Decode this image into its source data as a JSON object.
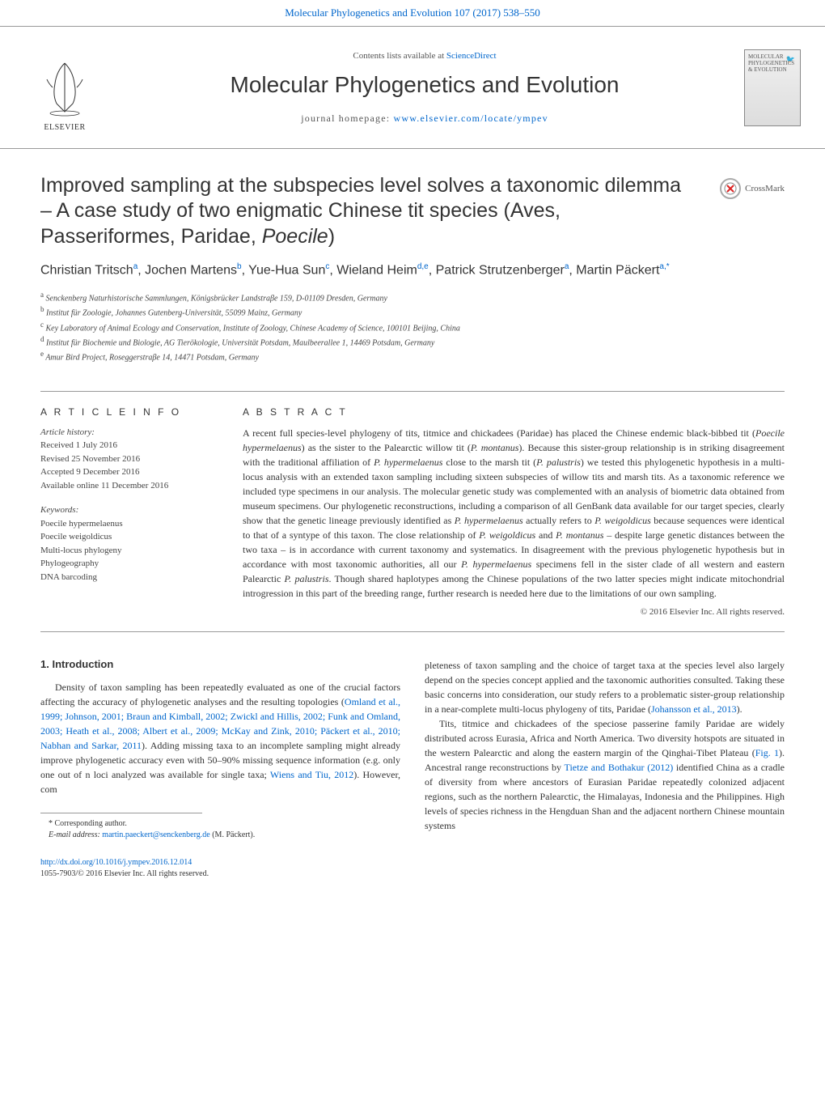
{
  "header": {
    "citation": "Molecular Phylogenetics and Evolution 107 (2017) 538–550",
    "contents_prefix": "Contents lists available at ",
    "contents_link": "ScienceDirect",
    "journal_title": "Molecular Phylogenetics and Evolution",
    "homepage_prefix": "journal homepage: ",
    "homepage_link": "www.elsevier.com/locate/ympev",
    "publisher_name": "ELSEVIER",
    "cover_label": "MOLECULAR PHYLOGENETICS & EVOLUTION"
  },
  "crossmark": {
    "label": "CrossMark"
  },
  "article": {
    "title_pre": "Improved sampling at the subspecies level solves a taxonomic dilemma – A case study of two enigmatic Chinese tit species (Aves, Passeriformes, Paridae, ",
    "title_italic": "Poecile",
    "title_post": ")",
    "authors_html": "Christian Tritsch<sup>a</sup>, Jochen Martens<sup>b</sup>, Yue-Hua Sun<sup>c</sup>, Wieland Heim<sup>d,e</sup>, Patrick Strutzenberger<sup>a</sup>, Martin Päckert<sup>a,*</sup>",
    "affiliations": [
      {
        "sup": "a",
        "text": "Senckenberg Naturhistorische Sammlungen, Königsbrücker Landstraβe 159, D-01109 Dresden, Germany"
      },
      {
        "sup": "b",
        "text": "Institut für Zoologie, Johannes Gutenberg-Universität, 55099 Mainz, Germany"
      },
      {
        "sup": "c",
        "text": "Key Laboratory of Animal Ecology and Conservation, Institute of Zoology, Chinese Academy of Science, 100101 Beijing, China"
      },
      {
        "sup": "d",
        "text": "Institut für Biochemie und Biologie, AG Tierökologie, Universität Potsdam, Maulbeerallee 1, 14469 Potsdam, Germany"
      },
      {
        "sup": "e",
        "text": "Amur Bird Project, Roseggerstraβe 14, 14471 Potsdam, Germany"
      }
    ]
  },
  "info": {
    "heading": "A R T I C L E   I N F O",
    "history_label": "Article history:",
    "history": [
      "Received 1 July 2016",
      "Revised 25 November 2016",
      "Accepted 9 December 2016",
      "Available online 11 December 2016"
    ],
    "keywords_label": "Keywords:",
    "keywords": [
      "Poecile hypermelaenus",
      "Poecile weigoldicus",
      "Multi-locus phylogeny",
      "Phylogeography",
      "DNA barcoding"
    ]
  },
  "abstract": {
    "heading": "A B S T R A C T",
    "text": "A recent full species-level phylogeny of tits, titmice and chickadees (Paridae) has placed the Chinese endemic black-bibbed tit (Poecile hypermelaenus) as the sister to the Palearctic willow tit (P. montanus). Because this sister-group relationship is in striking disagreement with the traditional affiliation of P. hypermelaenus close to the marsh tit (P. palustris) we tested this phylogenetic hypothesis in a multi-locus analysis with an extended taxon sampling including sixteen subspecies of willow tits and marsh tits. As a taxonomic reference we included type specimens in our analysis. The molecular genetic study was complemented with an analysis of biometric data obtained from museum specimens. Our phylogenetic reconstructions, including a comparison of all GenBank data available for our target species, clearly show that the genetic lineage previously identified as P. hypermelaenus actually refers to P. weigoldicus because sequences were identical to that of a syntype of this taxon. The close relationship of P. weigoldicus and P. montanus – despite large genetic distances between the two taxa – is in accordance with current taxonomy and systematics. In disagreement with the previous phylogenetic hypothesis but in accordance with most taxonomic authorities, all our P. hypermelaenus specimens fell in the sister clade of all western and eastern Palearctic P. palustris. Though shared haplotypes among the Chinese populations of the two latter species might indicate mitochondrial introgression in this part of the breeding range, further research is needed here due to the limitations of our own sampling.",
    "copyright": "© 2016 Elsevier Inc. All rights reserved."
  },
  "body": {
    "section_number": "1.",
    "section_title": "Introduction",
    "para1_pre": "Density of taxon sampling has been repeatedly evaluated as one of the crucial factors affecting the accuracy of phylogenetic analyses and the resulting topologies (",
    "para1_link1": "Omland et al., 1999; Johnson, 2001; Braun and Kimball, 2002; Zwickl and Hillis, 2002; Funk and Omland, 2003; Heath et al., 2008; Albert et al., 2009; McKay and Zink, 2010; Päckert et al., 2010; Nabhan and Sarkar, 2011",
    "para1_mid1": "). Adding missing taxa to an incomplete sampling might already improve phylogenetic accuracy even with 50–90% missing sequence information (e.g. only one out of n loci analyzed was available for single taxa; ",
    "para1_link2": "Wiens and Tiu, 2012",
    "para1_post": "). However, com",
    "para1_cont": "pleteness of taxon sampling and the choice of target taxa at the species level also largely depend on the species concept applied and the taxonomic authorities consulted. Taking these basic concerns into consideration, our study refers to a problematic sister-group relationship in a near-complete multi-locus phylogeny of tits, Paridae (",
    "para1_cont_link": "Johansson et al., 2013",
    "para1_cont_post": ").",
    "para2_pre": "Tits, titmice and chickadees of the speciose passerine family Paridae are widely distributed across Eurasia, Africa and North America. Two diversity hotspots are situated in the western Palearctic and along the eastern margin of the Qinghai-Tibet Plateau (",
    "para2_link1": "Fig. 1",
    "para2_mid1": "). Ancestral range reconstructions by ",
    "para2_link2": "Tietze and Bothakur (2012)",
    "para2_mid2": " identified China as a cradle of diversity from where ancestors of Eurasian Paridae repeatedly colonized adjacent regions, such as the northern Palearctic, the Himalayas, Indonesia and the Philippines. High levels of species richness in the Hengduan Shan and the adjacent northern Chinese mountain systems"
  },
  "footnote": {
    "corresponding": "* Corresponding author.",
    "email_label": "E-mail address: ",
    "email": "martin.paeckert@senckenberg.de",
    "email_suffix": " (M. Päckert)."
  },
  "footer": {
    "doi": "http://dx.doi.org/10.1016/j.ympev.2016.12.014",
    "issn": "1055-7903/© 2016 Elsevier Inc. All rights reserved."
  },
  "colors": {
    "link": "#0066cc",
    "text": "#333333",
    "muted": "#555555",
    "rule": "#999999"
  }
}
